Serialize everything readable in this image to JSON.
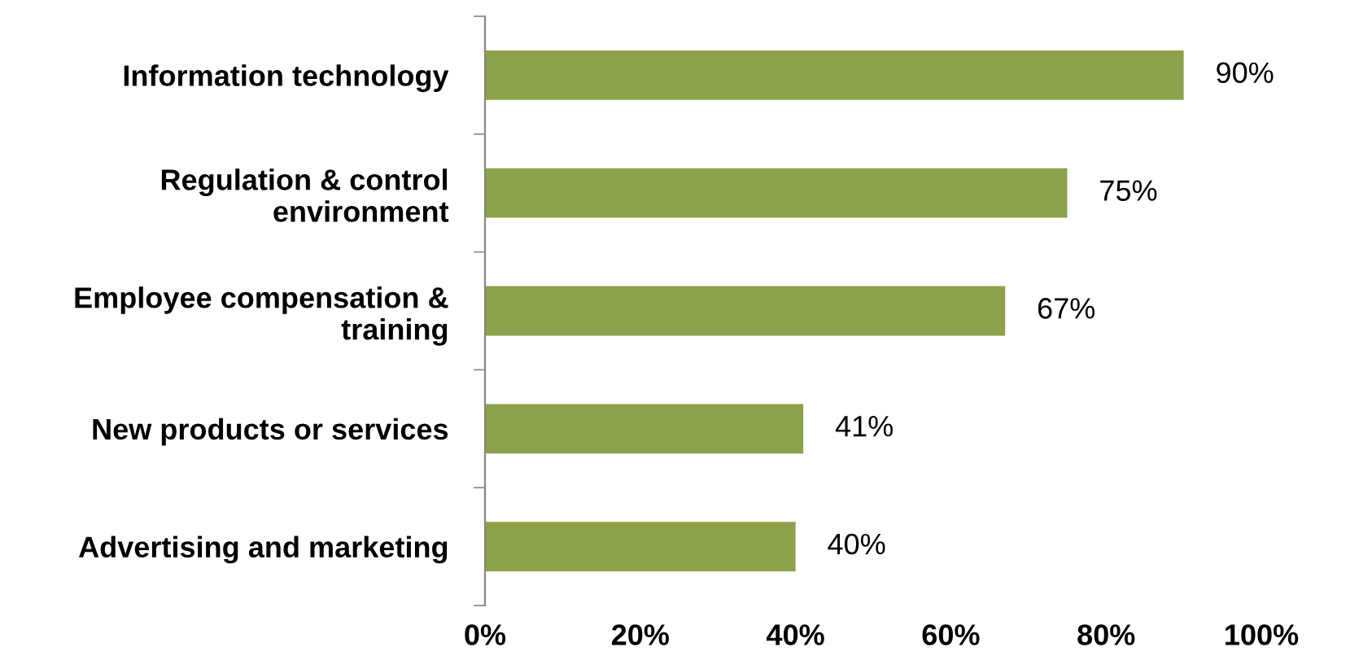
{
  "chart_data": {
    "type": "bar",
    "orientation": "horizontal",
    "categories": [
      "Information technology",
      "Regulation & control\nenvironment",
      "Employee compensation &\ntraining",
      "New products or services",
      "Advertising and marketing"
    ],
    "values": [
      90,
      75,
      67,
      41,
      40
    ],
    "value_labels": [
      "90%",
      "75%",
      "67%",
      "41%",
      "40%"
    ],
    "color": "#8ba24a",
    "xlim": [
      0,
      100
    ],
    "xticks": [
      {
        "value": 0,
        "label": "0%"
      },
      {
        "value": 20,
        "label": "20%"
      },
      {
        "value": 40,
        "label": "40%"
      },
      {
        "value": 60,
        "label": "60%"
      },
      {
        "value": 80,
        "label": "80%"
      },
      {
        "value": 100,
        "label": "100%"
      }
    ],
    "grid": false,
    "legend": false
  }
}
